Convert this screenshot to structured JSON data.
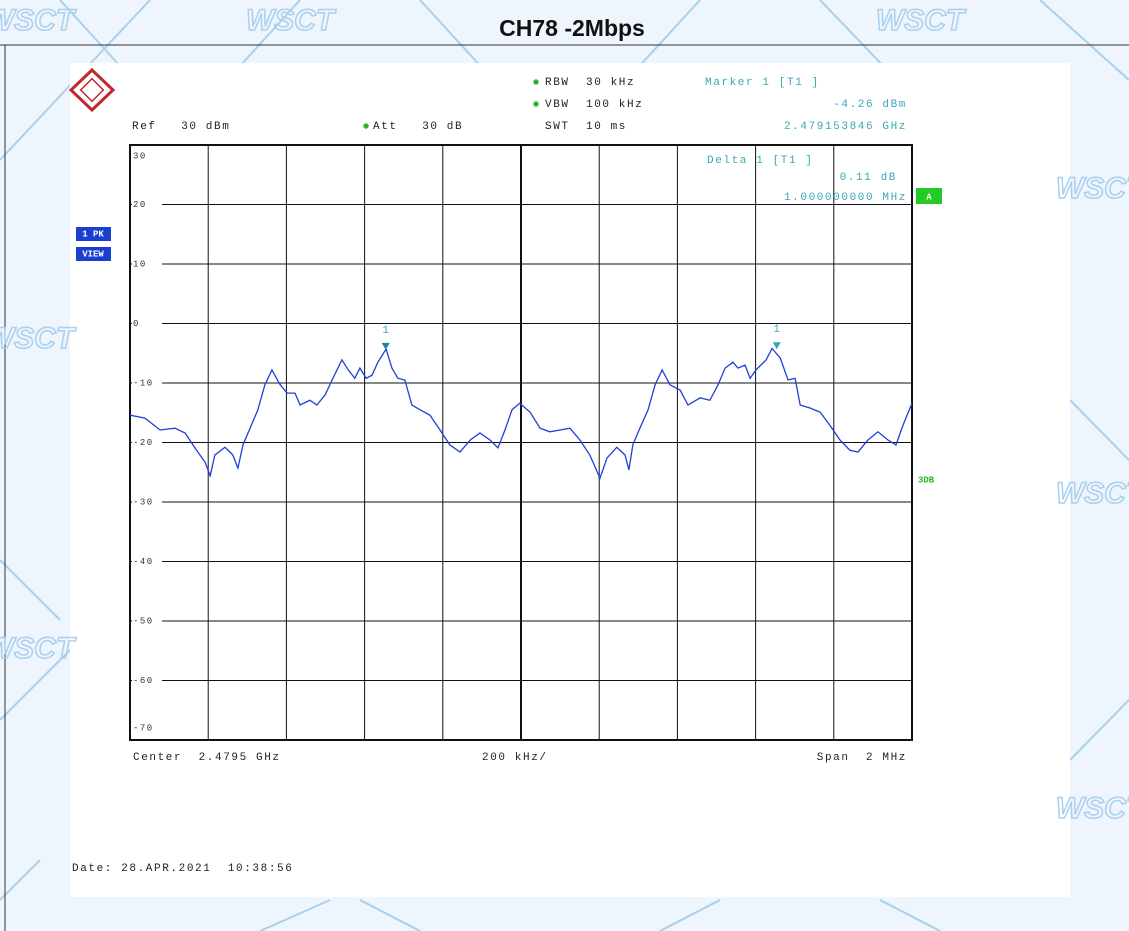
{
  "chart_data": {
    "type": "line",
    "title": "CH78 -2Mbps",
    "watermark": "WSCT",
    "x": [
      2.4785,
      2.478538,
      2.478577,
      2.478615,
      2.478641,
      2.478666,
      2.478692,
      2.478705,
      2.478717,
      2.478743,
      2.478763,
      2.478776,
      2.478789,
      2.478807,
      2.478827,
      2.478845,
      2.478863,
      2.478884,
      2.478902,
      2.478922,
      2.478935,
      2.47896,
      2.478978,
      2.478999,
      2.479019,
      2.479042,
      2.479058,
      2.479075,
      2.479088,
      2.479104,
      2.479119,
      2.479134,
      2.479155,
      2.47917,
      2.479185,
      2.479203,
      2.479221,
      2.479242,
      2.479267,
      2.479293,
      2.479318,
      2.479344,
      2.47937,
      2.479395,
      2.479421,
      2.479441,
      2.479459,
      2.479477,
      2.479497,
      2.479523,
      2.479549,
      2.479574,
      2.4796,
      2.479625,
      2.479651,
      2.479676,
      2.479702,
      2.47972,
      2.479745,
      2.479766,
      2.479776,
      2.479786,
      2.479804,
      2.479825,
      2.479843,
      2.479861,
      2.479881,
      2.479907,
      2.479927,
      2.479958,
      2.479983,
      2.480004,
      2.480022,
      2.480042,
      2.480055,
      2.480073,
      2.480086,
      2.480101,
      2.480127,
      2.480142,
      2.480163,
      2.480183,
      2.480201,
      2.480214,
      2.480239,
      2.480265,
      2.48029,
      2.480316,
      2.480341,
      2.480362,
      2.480387,
      2.480413,
      2.480439,
      2.480459,
      2.480477,
      2.4805
    ],
    "values": [
      -15.4,
      -15.9,
      -17.9,
      -17.6,
      -18.4,
      -20.9,
      -23.3,
      -25.6,
      -22.1,
      -20.8,
      -22.1,
      -24.3,
      -20.4,
      -17.6,
      -14.5,
      -10.3,
      -7.8,
      -10.3,
      -11.7,
      -11.7,
      -13.7,
      -12.9,
      -13.7,
      -12.0,
      -9.2,
      -6.1,
      -7.8,
      -9.2,
      -7.5,
      -9.2,
      -8.7,
      -6.5,
      -4.3,
      -7.5,
      -9.2,
      -9.5,
      -13.7,
      -14.5,
      -15.4,
      -17.9,
      -20.4,
      -21.6,
      -19.6,
      -18.4,
      -19.6,
      -20.9,
      -17.9,
      -14.5,
      -13.4,
      -14.9,
      -17.6,
      -18.2,
      -17.9,
      -17.6,
      -19.6,
      -22.1,
      -26.0,
      -22.6,
      -20.8,
      -22.1,
      -24.6,
      -20.4,
      -17.6,
      -14.5,
      -10.3,
      -7.8,
      -10.3,
      -11.2,
      -13.7,
      -12.5,
      -12.9,
      -10.3,
      -7.5,
      -6.5,
      -7.5,
      -7.0,
      -9.2,
      -7.8,
      -6.1,
      -4.2,
      -5.8,
      -9.5,
      -9.2,
      -13.7,
      -14.2,
      -14.9,
      -17.1,
      -19.6,
      -21.3,
      -21.6,
      -19.6,
      -18.2,
      -19.6,
      -20.4,
      -17.1,
      -13.4
    ],
    "color": "#1f3fd6",
    "xlim": [
      2.4785,
      2.4805
    ],
    "xticks": [
      2.4785,
      2.4787,
      2.4789,
      2.4791,
      2.4793,
      2.4795,
      2.4797,
      2.4799,
      2.4801,
      2.4803,
      2.4805
    ],
    "ylim": [
      -70,
      30
    ],
    "yticks": [
      30,
      20,
      10,
      0,
      -10,
      -20,
      -30,
      -40,
      -50,
      -60,
      -70
    ],
    "grid": true,
    "markers": [
      {
        "label": "1",
        "x": 2.479154,
        "y": -4.26,
        "color": "#1a8a9a"
      },
      {
        "label": "1",
        "x": 2.480154,
        "y": -4.15,
        "color": "#3aa7b8"
      }
    ],
    "header": {
      "rbw": "RBW  30 kHz",
      "vbw": "VBW  100 kHz",
      "swt": "SWT  10 ms",
      "ref": "Ref   30 dBm",
      "att": "Att   30 dB",
      "marker_title": "Marker 1 [T1 ]",
      "marker_level": "-4.26 dBm",
      "marker_freq": "2.479153846 GHz",
      "delta_title": "Delta 1 [T1 ]",
      "delta_level": "0.11 dB",
      "delta_freq": "1.000000000 MHz"
    },
    "side": {
      "trace": "1 PK",
      "view": "VIEW",
      "a": "A",
      "db": "3DB"
    },
    "footer": {
      "center": "Center  2.4795 GHz",
      "div": "200 kHz/",
      "span": "Span  2 MHz"
    },
    "date": "Date: 28.APR.2021  10:38:56"
  }
}
